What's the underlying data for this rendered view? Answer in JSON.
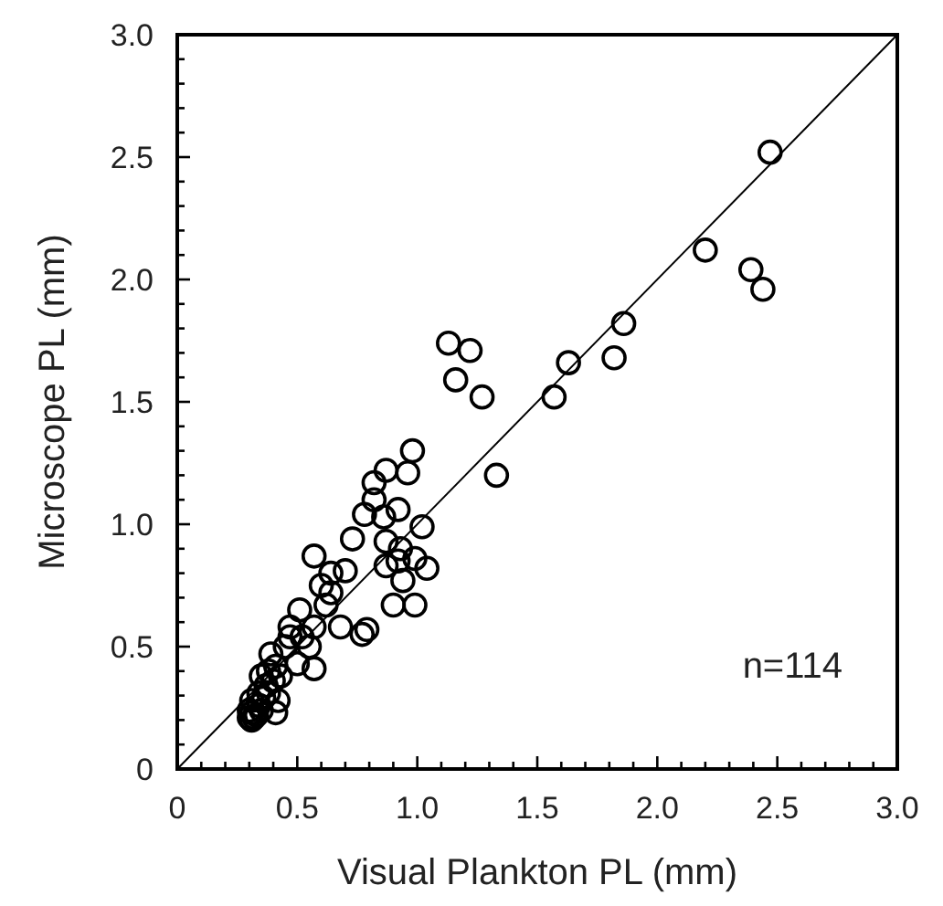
{
  "chart_data": {
    "type": "scatter",
    "xlabel": "Visual Plankton PL (mm)",
    "ylabel": "Microscope PL (mm)",
    "annotations": [
      "n=114"
    ],
    "xlim": [
      0,
      3
    ],
    "ylim": [
      0,
      3
    ],
    "xticks": [
      {
        "value": 0,
        "label": "0"
      },
      {
        "value": 0.1,
        "label": null
      },
      {
        "value": 0.2,
        "label": null
      },
      {
        "value": 0.3,
        "label": null
      },
      {
        "value": 0.4,
        "label": null
      },
      {
        "value": 0.5,
        "label": "0.5"
      },
      {
        "value": 0.6,
        "label": null
      },
      {
        "value": 0.7,
        "label": null
      },
      {
        "value": 0.8,
        "label": null
      },
      {
        "value": 0.9,
        "label": null
      },
      {
        "value": 1,
        "label": "1.0"
      },
      {
        "value": 1.1,
        "label": null
      },
      {
        "value": 1.2,
        "label": null
      },
      {
        "value": 1.3,
        "label": null
      },
      {
        "value": 1.4,
        "label": null
      },
      {
        "value": 1.5,
        "label": "1.5"
      },
      {
        "value": 1.6,
        "label": null
      },
      {
        "value": 1.7,
        "label": null
      },
      {
        "value": 1.8,
        "label": null
      },
      {
        "value": 1.9,
        "label": null
      },
      {
        "value": 2,
        "label": "2.0"
      },
      {
        "value": 2.1,
        "label": null
      },
      {
        "value": 2.2,
        "label": null
      },
      {
        "value": 2.3,
        "label": null
      },
      {
        "value": 2.4,
        "label": null
      },
      {
        "value": 2.5,
        "label": "2.5"
      },
      {
        "value": 2.6,
        "label": null
      },
      {
        "value": 2.7,
        "label": null
      },
      {
        "value": 2.8,
        "label": null
      },
      {
        "value": 2.9,
        "label": null
      },
      {
        "value": 3,
        "label": "3.0"
      }
    ],
    "yticks": [
      {
        "value": 0,
        "label": "0"
      },
      {
        "value": 0.1,
        "label": null
      },
      {
        "value": 0.2,
        "label": null
      },
      {
        "value": 0.3,
        "label": null
      },
      {
        "value": 0.4,
        "label": null
      },
      {
        "value": 0.5,
        "label": "0.5"
      },
      {
        "value": 0.6,
        "label": null
      },
      {
        "value": 0.7,
        "label": null
      },
      {
        "value": 0.8,
        "label": null
      },
      {
        "value": 0.9,
        "label": null
      },
      {
        "value": 1,
        "label": "1.0"
      },
      {
        "value": 1.1,
        "label": null
      },
      {
        "value": 1.2,
        "label": null
      },
      {
        "value": 1.3,
        "label": null
      },
      {
        "value": 1.4,
        "label": null
      },
      {
        "value": 1.5,
        "label": "1.5"
      },
      {
        "value": 1.6,
        "label": null
      },
      {
        "value": 1.7,
        "label": null
      },
      {
        "value": 1.8,
        "label": null
      },
      {
        "value": 1.9,
        "label": null
      },
      {
        "value": 2,
        "label": "2.0"
      },
      {
        "value": 2.1,
        "label": null
      },
      {
        "value": 2.2,
        "label": null
      },
      {
        "value": 2.3,
        "label": null
      },
      {
        "value": 2.4,
        "label": null
      },
      {
        "value": 2.5,
        "label": "2.5"
      },
      {
        "value": 2.6,
        "label": null
      },
      {
        "value": 2.7,
        "label": null
      },
      {
        "value": 2.8,
        "label": null
      },
      {
        "value": 2.9,
        "label": null
      },
      {
        "value": 3,
        "label": "3.0"
      }
    ],
    "series": [
      {
        "marker": "circle",
        "color": "#000000",
        "x": [
          2.47,
          2.2,
          2.39,
          2.44,
          1.86,
          1.82,
          1.63,
          1.57,
          1.33,
          1.13,
          1.22,
          1.16,
          1.27,
          0.98,
          0.96,
          0.87,
          0.82,
          0.82,
          0.78,
          0.86,
          0.92,
          1.02,
          0.73,
          0.87,
          0.93,
          1.04,
          0.99,
          0.87,
          0.92,
          0.94,
          0.9,
          0.99,
          0.57,
          0.64,
          0.7,
          0.64,
          0.62,
          0.57,
          0.68,
          0.77,
          0.79,
          0.51,
          0.47,
          0.47,
          0.52,
          0.5,
          0.57,
          0.39,
          0.41,
          0.35,
          0.37,
          0.34,
          0.42,
          0.41,
          0.31,
          0.3,
          0.3,
          0.32,
          0.35,
          0.38,
          0.31,
          0.45,
          0.55,
          0.6,
          0.31,
          0.33,
          0.34,
          0.36,
          0.4,
          0.43,
          0.38
        ],
        "values": [
          2.52,
          2.12,
          2.04,
          1.96,
          1.82,
          1.68,
          1.66,
          1.52,
          1.2,
          1.74,
          1.71,
          1.59,
          1.52,
          1.3,
          1.21,
          1.22,
          1.17,
          1.1,
          1.04,
          1.03,
          1.06,
          0.99,
          0.94,
          0.93,
          0.9,
          0.82,
          0.86,
          0.83,
          0.85,
          0.77,
          0.67,
          0.67,
          0.87,
          0.8,
          0.81,
          0.72,
          0.67,
          0.58,
          0.58,
          0.55,
          0.57,
          0.65,
          0.58,
          0.54,
          0.54,
          0.43,
          0.41,
          0.47,
          0.42,
          0.38,
          0.34,
          0.31,
          0.28,
          0.23,
          0.28,
          0.24,
          0.21,
          0.21,
          0.24,
          0.31,
          0.23,
          0.5,
          0.5,
          0.75,
          0.2,
          0.22,
          0.26,
          0.29,
          0.36,
          0.38,
          0.4
        ]
      },
      {
        "type": "line",
        "marker": "none",
        "color": "#000000",
        "x": [
          0,
          3
        ],
        "values": [
          0,
          3
        ]
      }
    ]
  }
}
